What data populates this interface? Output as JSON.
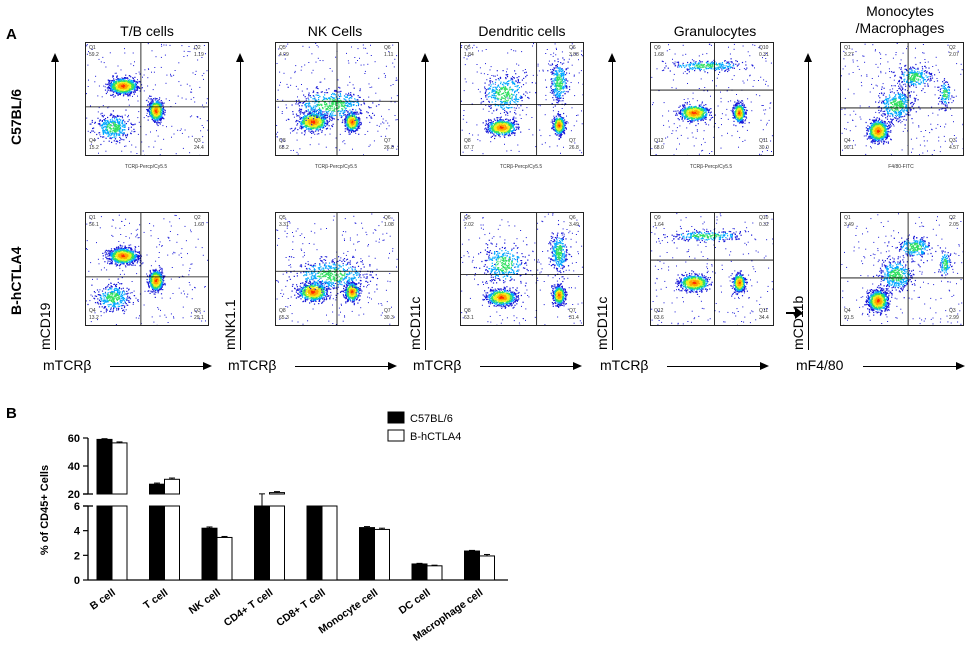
{
  "figure": {
    "panel_a_label": "A",
    "panel_b_label": "B",
    "columns": [
      "T/B cells",
      "NK Cells",
      "Dendritic cells",
      "Granulocytes",
      "Monocytes\n/Macrophages"
    ],
    "rows": [
      "C57BL/6",
      "B-hCTLA4"
    ],
    "y_axes": [
      "mCD19",
      "mNK1.1",
      "mCD11c",
      "mCD11c",
      "mCD11b"
    ],
    "x_axes": [
      "mTCRβ",
      "mTCRβ",
      "mTCRβ",
      "mTCRβ",
      "mF4/80"
    ],
    "plot_x_names": [
      "TCRβ-Percp/Cy5.5",
      "TCRβ-Percp/Cy5.5",
      "TCRβ-Percp/Cy5.5",
      "TCRβ-Percp/Cy5.5",
      "F4/80-FITC"
    ]
  },
  "flow_plots": [
    [
      {
        "q": [
          "Q1",
          "Q2",
          "Q3",
          "Q4"
        ],
        "v": [
          "59.2",
          "1.19",
          "24.4",
          "15.2"
        ]
      },
      {
        "q": [
          "Q5",
          "Q6",
          "Q7",
          "Q8"
        ],
        "v": [
          "4.09",
          "1.11",
          "26.8",
          "68.2"
        ]
      },
      {
        "q": [
          "Q5",
          "Q6",
          "Q7",
          "Q8"
        ],
        "v": [
          "1.84",
          "3.88",
          "26.8",
          "67.7"
        ]
      },
      {
        "q": [
          "Q9",
          "Q10",
          "Q11",
          "Q12"
        ],
        "v": [
          "1.68",
          "0.31",
          "30.0",
          "68.0"
        ]
      },
      {
        "q": [
          "Q1",
          "Q2",
          "Q3",
          "Q4"
        ],
        "v": [
          "3.27",
          "2.07",
          "4.57",
          "90.1"
        ]
      }
    ],
    [
      {
        "q": [
          "Q1",
          "Q2",
          "Q3",
          "Q4"
        ],
        "v": [
          "56.1",
          "1.60",
          "29.1",
          "13.2"
        ]
      },
      {
        "q": [
          "Q5",
          "Q6",
          "Q7",
          "Q8"
        ],
        "v": [
          "3.31",
          "1.08",
          "30.3",
          "65.3"
        ]
      },
      {
        "q": [
          "Q5",
          "Q6",
          "Q7",
          "Q8"
        ],
        "v": [
          "2.02",
          "3.49",
          "31.4",
          "63.1"
        ]
      },
      {
        "q": [
          "Q9",
          "Q10",
          "Q11",
          "Q12"
        ],
        "v": [
          "1.64",
          "0.32",
          "34.4",
          "63.6"
        ]
      },
      {
        "q": [
          "Q1",
          "Q2",
          "Q3",
          "Q4"
        ],
        "v": [
          "3.49",
          "2.05",
          "2.99",
          "91.5"
        ]
      }
    ]
  ],
  "chart_data": {
    "type": "bar",
    "ylabel": "% of CD45+ Cells",
    "categories": [
      "B cell",
      "T cell",
      "NK cell",
      "CD4+ T cell",
      "CD8+ T cell",
      "Monocyte cell",
      "DC cell",
      "Macrophage cell"
    ],
    "series": [
      {
        "name": "C57BL/6",
        "color": "#000000",
        "values": [
          59,
          27,
          4.2,
          19.5,
          10,
          4.25,
          1.3,
          2.35
        ],
        "err": [
          0.5,
          0.8,
          0.1,
          0.6,
          0.4,
          0.08,
          0.05,
          0.05
        ]
      },
      {
        "name": "B-hCTLA4",
        "color": "#ffffff",
        "values": [
          56.5,
          30.5,
          3.45,
          21,
          10.8,
          4.1,
          1.15,
          1.95
        ],
        "err": [
          0.7,
          0.9,
          0.08,
          0.7,
          0.4,
          0.1,
          0.05,
          0.12
        ]
      }
    ],
    "y_axis_break": {
      "lower": [
        0,
        6
      ],
      "upper": [
        20,
        60
      ]
    },
    "yticks_lower": [
      "0",
      "2",
      "4",
      "6"
    ],
    "yticks_upper": [
      "20",
      "40",
      "60"
    ],
    "legend_position": "top-right"
  }
}
